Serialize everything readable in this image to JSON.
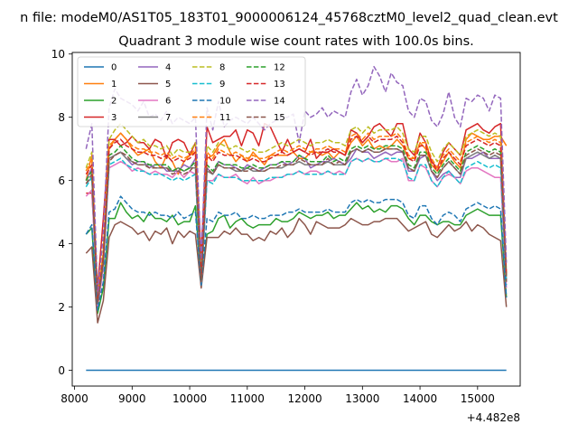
{
  "figure": {
    "suptitle": "n file: modeM0/AS1T05_183T01_9000006124_45768cztM0_level2_quad_clean.evt",
    "title": "Quadrant 3 module wise count rates with 100.0s bins.",
    "x_offset_label": "+4.482e8"
  },
  "chart_data": {
    "type": "line",
    "title": "Quadrant 3 module wise count rates with 100.0s bins.",
    "xlabel": "",
    "ylabel": "",
    "x_offset": 448200000,
    "xlim": [
      7960,
      15740
    ],
    "ylim": [
      -0.5,
      10.05
    ],
    "xticks": [
      8000,
      9000,
      10000,
      11000,
      12000,
      13000,
      14000,
      15000
    ],
    "yticks": [
      0,
      2,
      4,
      6,
      8,
      10
    ],
    "grid": false,
    "legend": {
      "placement": "top-left",
      "columns": 4
    },
    "x_start": 8200,
    "x_step": 100,
    "x_end": 15500,
    "series": [
      {
        "name": "0",
        "color": "#1f77b4",
        "dash": "solid",
        "values": [
          0,
          0
        ]
      },
      {
        "name": "1",
        "color": "#ff7f0e",
        "dash": "solid",
        "values": [
          6.0,
          6.8,
          2.2,
          3.6,
          7.0,
          7.3,
          7.5,
          7.3,
          7.0,
          6.8,
          6.9,
          7.0,
          6.6,
          6.4,
          6.8,
          6.6,
          6.2,
          6.6,
          6.8,
          6.9,
          2.9,
          6.7,
          6.8,
          7.1,
          7.3,
          6.9,
          6.6,
          6.8,
          6.6,
          6.9,
          6.7,
          6.5,
          6.8,
          6.8,
          6.8,
          6.8,
          6.9,
          6.7,
          6.7,
          6.9,
          6.9,
          6.8,
          6.9,
          6.7,
          6.9,
          6.8,
          7.2,
          7.4,
          7.1,
          7.3,
          7.0,
          7.1,
          7.0,
          7.1,
          7.3,
          7.1,
          6.7,
          6.7,
          7.2,
          7.0,
          6.5,
          6.3,
          6.6,
          6.9,
          6.6,
          6.4,
          7.3,
          7.5,
          7.4,
          7.3,
          7.3,
          7.4,
          7.4,
          7.1
        ]
      },
      {
        "name": "2",
        "color": "#2ca02c",
        "dash": "solid",
        "values": [
          4.3,
          4.5,
          1.8,
          2.6,
          4.8,
          4.8,
          5.3,
          5.0,
          4.8,
          4.9,
          4.7,
          5.0,
          4.8,
          4.8,
          4.7,
          4.9,
          4.6,
          4.7,
          4.7,
          5.2,
          2.7,
          4.3,
          4.4,
          4.8,
          4.9,
          4.5,
          4.7,
          4.8,
          4.6,
          4.5,
          4.6,
          4.6,
          4.6,
          4.8,
          4.7,
          4.7,
          4.8,
          5.0,
          4.9,
          4.8,
          4.9,
          4.9,
          5.0,
          4.8,
          4.9,
          4.9,
          5.1,
          5.3,
          5.1,
          5.2,
          5.0,
          5.1,
          5.0,
          5.2,
          5.2,
          5.1,
          4.8,
          4.6,
          4.9,
          4.9,
          4.7,
          4.6,
          4.7,
          4.7,
          4.6,
          4.6,
          4.9,
          5.0,
          5.1,
          5.0,
          4.9,
          4.9,
          4.9,
          2.3
        ]
      },
      {
        "name": "3",
        "color": "#d62728",
        "dash": "solid",
        "values": [
          5.6,
          5.6,
          2.6,
          4.8,
          7.3,
          7.3,
          7.1,
          7.2,
          7.4,
          7.2,
          7.2,
          7.0,
          7.3,
          7.2,
          6.7,
          7.2,
          7.3,
          7.2,
          6.8,
          7.2,
          3.6,
          7.7,
          7.2,
          7.3,
          7.4,
          7.4,
          7.6,
          7.1,
          7.6,
          7.5,
          7.1,
          7.8,
          7.7,
          7.3,
          6.9,
          7.3,
          6.9,
          7.0,
          6.9,
          7.3,
          6.7,
          6.9,
          6.9,
          7.0,
          6.9,
          6.8,
          7.6,
          7.5,
          7.2,
          7.4,
          7.7,
          7.8,
          7.6,
          7.4,
          7.8,
          7.8,
          7.0,
          6.8,
          7.5,
          7.2,
          6.6,
          6.4,
          6.9,
          7.2,
          7.0,
          6.8,
          7.6,
          7.7,
          7.8,
          7.6,
          7.5,
          7.7,
          7.8,
          3.0
        ]
      },
      {
        "name": "4",
        "color": "#9467bd",
        "dash": "solid",
        "values": [
          6.0,
          6.4,
          2.2,
          3.5,
          6.7,
          6.8,
          6.9,
          6.7,
          6.5,
          6.6,
          6.6,
          6.4,
          6.5,
          6.5,
          6.3,
          6.3,
          6.3,
          6.5,
          6.4,
          6.7,
          2.9,
          6.4,
          6.2,
          6.6,
          6.5,
          6.5,
          6.4,
          6.3,
          6.5,
          6.4,
          6.3,
          6.4,
          6.5,
          6.5,
          6.6,
          6.5,
          6.6,
          6.8,
          6.7,
          6.4,
          6.5,
          6.6,
          6.6,
          6.7,
          6.6,
          6.5,
          6.7,
          7.0,
          6.9,
          6.9,
          6.7,
          6.8,
          6.9,
          6.8,
          6.9,
          6.9,
          6.3,
          6.3,
          6.7,
          6.8,
          6.3,
          6.0,
          6.2,
          6.3,
          6.1,
          6.1,
          6.7,
          6.7,
          6.8,
          6.9,
          6.7,
          6.7,
          6.7,
          2.8
        ]
      },
      {
        "name": "5",
        "color": "#8c564b",
        "dash": "solid",
        "values": [
          3.7,
          3.9,
          1.5,
          2.2,
          4.2,
          4.6,
          4.7,
          4.6,
          4.5,
          4.3,
          4.4,
          4.1,
          4.4,
          4.3,
          4.5,
          4.0,
          4.4,
          4.2,
          4.4,
          4.3,
          2.6,
          4.2,
          4.2,
          4.2,
          4.4,
          4.3,
          4.5,
          4.3,
          4.3,
          4.1,
          4.2,
          4.1,
          4.4,
          4.3,
          4.5,
          4.2,
          4.4,
          4.8,
          4.6,
          4.3,
          4.7,
          4.6,
          4.5,
          4.5,
          4.5,
          4.6,
          4.8,
          4.7,
          4.6,
          4.6,
          4.7,
          4.7,
          4.8,
          4.8,
          4.8,
          4.6,
          4.4,
          4.5,
          4.6,
          4.7,
          4.3,
          4.2,
          4.4,
          4.6,
          4.4,
          4.5,
          4.7,
          4.4,
          4.6,
          4.5,
          4.3,
          4.2,
          4.1,
          2.0
        ]
      },
      {
        "name": "6",
        "color": "#e377c2",
        "dash": "solid",
        "values": [
          5.5,
          5.7,
          2.0,
          3.2,
          6.4,
          6.5,
          6.6,
          6.5,
          6.3,
          6.4,
          6.3,
          6.2,
          6.3,
          6.2,
          6.2,
          6.1,
          6.3,
          6.1,
          6.3,
          6.2,
          2.7,
          6.0,
          6.0,
          6.2,
          6.1,
          6.1,
          6.2,
          6.0,
          5.9,
          6.1,
          5.9,
          6.0,
          6.0,
          6.1,
          6.1,
          6.2,
          6.2,
          6.3,
          6.2,
          6.3,
          6.3,
          6.2,
          6.3,
          6.2,
          6.3,
          6.2,
          6.6,
          6.7,
          6.6,
          6.7,
          6.6,
          6.6,
          6.7,
          6.6,
          6.6,
          6.7,
          6.0,
          6.0,
          6.5,
          6.4,
          6.0,
          5.8,
          6.1,
          6.2,
          6.1,
          5.9,
          6.3,
          6.4,
          6.4,
          6.3,
          6.2,
          6.1,
          6.1,
          2.6
        ]
      },
      {
        "name": "7",
        "color": "#7f7f7f",
        "dash": "solid",
        "values": [
          5.9,
          6.1,
          2.1,
          3.4,
          6.7,
          6.8,
          6.9,
          6.7,
          6.6,
          6.5,
          6.5,
          6.5,
          6.4,
          6.4,
          6.4,
          6.3,
          6.4,
          6.3,
          6.4,
          6.4,
          2.8,
          6.3,
          6.2,
          6.5,
          6.4,
          6.4,
          6.3,
          6.3,
          6.4,
          6.3,
          6.3,
          6.3,
          6.4,
          6.4,
          6.4,
          6.5,
          6.5,
          6.6,
          6.5,
          6.5,
          6.5,
          6.5,
          6.6,
          6.5,
          6.5,
          6.5,
          6.9,
          7.0,
          6.9,
          7.0,
          6.9,
          6.9,
          7.0,
          7.0,
          7.0,
          6.9,
          6.4,
          6.3,
          6.8,
          6.8,
          6.3,
          6.1,
          6.4,
          6.6,
          6.4,
          6.2,
          6.7,
          6.8,
          6.9,
          6.8,
          6.7,
          6.8,
          6.7,
          2.8
        ]
      },
      {
        "name": "8",
        "color": "#bcbd22",
        "dash": "dashed",
        "values": [
          6.4,
          6.9,
          2.3,
          3.8,
          7.3,
          7.6,
          7.8,
          7.6,
          7.4,
          7.2,
          7.3,
          7.1,
          7.1,
          7.0,
          7.1,
          6.8,
          7.0,
          6.9,
          6.9,
          7.2,
          3.0,
          7.1,
          6.9,
          7.2,
          7.1,
          7.0,
          7.1,
          7.0,
          6.9,
          7.0,
          6.9,
          6.9,
          7.0,
          7.1,
          7.2,
          7.1,
          7.2,
          7.3,
          7.2,
          7.1,
          7.2,
          7.2,
          7.3,
          7.2,
          7.2,
          7.1,
          7.6,
          7.7,
          7.5,
          7.7,
          7.5,
          7.6,
          7.6,
          7.6,
          7.7,
          7.5,
          7.0,
          6.9,
          7.4,
          7.4,
          6.9,
          6.6,
          7.0,
          7.2,
          7.0,
          6.8,
          7.4,
          7.5,
          7.6,
          7.5,
          7.4,
          7.5,
          7.4,
          3.1
        ]
      },
      {
        "name": "9",
        "color": "#17becf",
        "dash": "dashed",
        "values": [
          5.8,
          6.1,
          2.1,
          3.4,
          6.5,
          6.6,
          6.7,
          6.5,
          6.4,
          6.3,
          6.3,
          6.2,
          6.2,
          6.2,
          6.1,
          6.0,
          6.1,
          6.0,
          6.1,
          6.2,
          2.7,
          6.0,
          5.9,
          6.2,
          6.1,
          6.1,
          6.1,
          6.0,
          6.0,
          6.0,
          6.0,
          6.0,
          6.1,
          6.1,
          6.1,
          6.2,
          6.2,
          6.3,
          6.2,
          6.2,
          6.2,
          6.2,
          6.3,
          6.2,
          6.2,
          6.2,
          6.6,
          6.7,
          6.6,
          6.7,
          6.6,
          6.6,
          6.7,
          6.7,
          6.7,
          6.6,
          6.1,
          6.0,
          6.5,
          6.5,
          6.0,
          5.8,
          6.1,
          6.3,
          6.1,
          5.9,
          6.4,
          6.5,
          6.6,
          6.5,
          6.4,
          6.5,
          6.4,
          2.7
        ]
      },
      {
        "name": "10",
        "color": "#1f77b4",
        "dash": "dashed",
        "values": [
          4.3,
          4.6,
          1.9,
          2.8,
          5.0,
          5.1,
          5.5,
          5.3,
          5.1,
          5.0,
          5.0,
          4.9,
          5.0,
          4.9,
          4.9,
          4.8,
          5.0,
          4.8,
          4.9,
          5.0,
          2.7,
          4.8,
          4.7,
          5.0,
          4.9,
          4.9,
          5.0,
          4.8,
          4.8,
          4.9,
          4.8,
          4.8,
          4.9,
          4.9,
          4.9,
          5.0,
          5.0,
          5.1,
          5.0,
          5.0,
          5.0,
          5.0,
          5.1,
          5.0,
          5.0,
          5.0,
          5.3,
          5.4,
          5.3,
          5.4,
          5.3,
          5.3,
          5.4,
          5.4,
          5.4,
          5.3,
          4.9,
          4.8,
          5.2,
          5.2,
          4.8,
          4.6,
          4.9,
          5.0,
          4.9,
          4.7,
          5.1,
          5.2,
          5.3,
          5.2,
          5.1,
          5.2,
          5.1,
          2.3
        ]
      },
      {
        "name": "11",
        "color": "#ff7f0e",
        "dash": "dashed",
        "values": [
          6.3,
          6.7,
          2.3,
          3.7,
          7.1,
          7.3,
          7.5,
          7.3,
          7.1,
          7.0,
          7.0,
          6.9,
          6.9,
          6.8,
          6.9,
          6.7,
          6.8,
          6.7,
          6.8,
          7.0,
          2.9,
          6.9,
          6.7,
          7.0,
          6.9,
          6.8,
          6.9,
          6.8,
          6.7,
          6.8,
          6.7,
          6.7,
          6.8,
          6.9,
          7.0,
          6.9,
          7.0,
          7.1,
          7.0,
          6.9,
          7.0,
          7.0,
          7.1,
          7.0,
          7.0,
          6.9,
          7.4,
          7.5,
          7.3,
          7.5,
          7.3,
          7.4,
          7.4,
          7.4,
          7.5,
          7.3,
          6.8,
          6.7,
          7.2,
          7.2,
          6.7,
          6.4,
          6.8,
          7.0,
          6.8,
          6.6,
          7.2,
          7.3,
          7.4,
          7.3,
          7.2,
          7.3,
          7.2,
          3.0
        ]
      },
      {
        "name": "12",
        "color": "#2ca02c",
        "dash": "dashed",
        "values": [
          6.0,
          6.3,
          2.2,
          3.5,
          6.8,
          6.9,
          7.1,
          6.9,
          6.7,
          6.6,
          6.6,
          6.5,
          6.5,
          6.5,
          6.5,
          6.3,
          6.4,
          6.3,
          6.4,
          6.6,
          2.8,
          6.5,
          6.3,
          6.6,
          6.5,
          6.5,
          6.5,
          6.4,
          6.4,
          6.5,
          6.4,
          6.4,
          6.5,
          6.5,
          6.6,
          6.6,
          6.6,
          6.8,
          6.7,
          6.6,
          6.6,
          6.6,
          6.8,
          6.6,
          6.7,
          6.6,
          7.0,
          7.1,
          7.0,
          7.1,
          7.0,
          7.0,
          7.1,
          7.1,
          7.1,
          7.0,
          6.5,
          6.4,
          6.9,
          6.9,
          6.4,
          6.2,
          6.5,
          6.7,
          6.5,
          6.3,
          6.9,
          7.0,
          7.1,
          7.0,
          6.9,
          7.0,
          6.9,
          2.9
        ]
      },
      {
        "name": "13",
        "color": "#d62728",
        "dash": "dashed",
        "values": [
          6.2,
          6.5,
          2.2,
          3.6,
          7.0,
          7.2,
          7.3,
          7.1,
          7.0,
          6.9,
          6.9,
          6.8,
          6.8,
          6.7,
          6.8,
          6.6,
          6.7,
          6.6,
          6.7,
          6.9,
          2.9,
          6.8,
          6.6,
          6.9,
          6.8,
          6.8,
          6.8,
          6.7,
          6.6,
          6.7,
          6.6,
          6.6,
          6.7,
          6.8,
          6.9,
          6.8,
          6.9,
          7.0,
          6.9,
          6.8,
          6.9,
          6.9,
          7.0,
          6.9,
          6.9,
          6.8,
          7.3,
          7.4,
          7.2,
          7.4,
          7.2,
          7.3,
          7.3,
          7.3,
          7.4,
          7.2,
          6.7,
          6.6,
          7.1,
          7.1,
          6.6,
          6.3,
          6.7,
          6.9,
          6.7,
          6.5,
          7.1,
          7.2,
          7.3,
          7.2,
          7.1,
          7.2,
          7.1,
          3.0
        ]
      },
      {
        "name": "14",
        "color": "#9467bd",
        "dash": "dashed",
        "values": [
          7.0,
          7.8,
          2.4,
          4.3,
          8.3,
          8.9,
          8.6,
          8.5,
          8.4,
          8.2,
          8.5,
          8.0,
          8.1,
          7.9,
          8.2,
          7.8,
          8.0,
          7.9,
          7.8,
          8.0,
          3.5,
          8.3,
          7.6,
          8.5,
          7.7,
          7.9,
          8.0,
          7.9,
          7.8,
          8.0,
          7.8,
          7.6,
          7.8,
          7.9,
          8.0,
          8.0,
          8.1,
          7.2,
          8.2,
          8.0,
          8.1,
          8.3,
          8.0,
          8.2,
          8.1,
          8.0,
          8.8,
          9.2,
          8.7,
          9.0,
          9.6,
          9.3,
          8.8,
          9.4,
          9.1,
          9.0,
          8.2,
          8.0,
          8.6,
          8.5,
          7.9,
          7.7,
          8.1,
          8.8,
          8.0,
          7.7,
          8.6,
          8.5,
          8.7,
          8.6,
          8.2,
          8.7,
          8.6,
          3.4
        ]
      },
      {
        "name": "15",
        "color": "#8c564b",
        "dash": "dashed",
        "values": [
          5.9,
          6.2,
          2.1,
          3.4,
          6.6,
          6.8,
          6.9,
          6.8,
          6.6,
          6.5,
          6.5,
          6.4,
          6.4,
          6.4,
          6.4,
          6.2,
          6.3,
          6.2,
          6.3,
          6.5,
          2.8,
          6.4,
          6.2,
          6.5,
          6.4,
          6.4,
          6.4,
          6.3,
          6.3,
          6.4,
          6.3,
          6.3,
          6.4,
          6.4,
          6.5,
          6.5,
          6.5,
          6.7,
          6.6,
          6.5,
          6.5,
          6.5,
          6.7,
          6.5,
          6.6,
          6.5,
          6.9,
          7.0,
          6.9,
          7.0,
          6.9,
          6.9,
          7.0,
          7.0,
          7.0,
          6.9,
          6.4,
          6.3,
          6.8,
          6.8,
          6.3,
          6.1,
          6.4,
          6.6,
          6.4,
          6.2,
          6.8,
          6.9,
          7.0,
          6.9,
          6.8,
          6.9,
          6.8,
          2.8
        ]
      }
    ]
  }
}
